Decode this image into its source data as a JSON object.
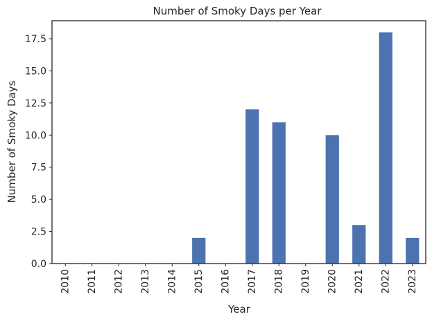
{
  "chart_data": {
    "type": "bar",
    "title": "Number of Smoky Days per Year",
    "xlabel": "Year",
    "ylabel": "Number of Smoky Days",
    "categories": [
      "2010",
      "2011",
      "2012",
      "2013",
      "2014",
      "2015",
      "2016",
      "2017",
      "2018",
      "2019",
      "2020",
      "2021",
      "2022",
      "2023"
    ],
    "values": [
      0,
      0,
      0,
      0,
      0,
      2,
      0,
      12,
      11,
      0,
      10,
      3,
      18,
      2
    ],
    "ylim": [
      0,
      18.9
    ],
    "yticks": [
      0.0,
      2.5,
      5.0,
      7.5,
      10.0,
      12.5,
      15.0,
      17.5
    ],
    "ytick_labels": [
      "0.0",
      "2.5",
      "5.0",
      "7.5",
      "10.0",
      "12.5",
      "15.0",
      "17.5"
    ],
    "grid": false,
    "bar_color": "#4c72b0",
    "frame_color": "#262626"
  }
}
